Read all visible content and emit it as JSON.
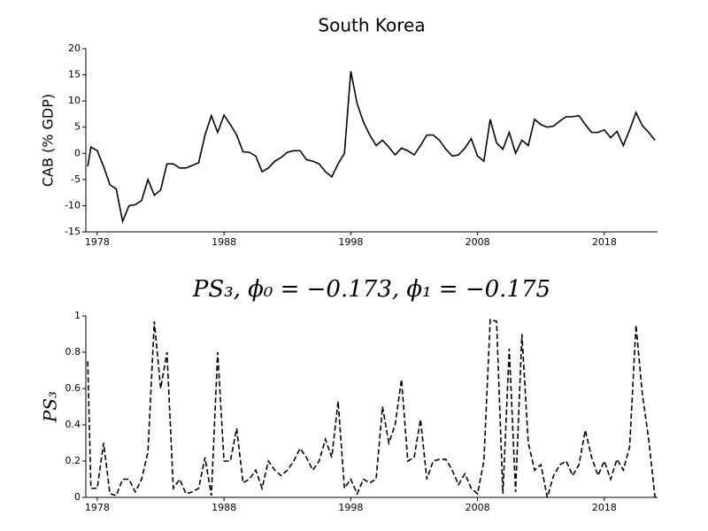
{
  "chart_data": [
    {
      "type": "line",
      "title": "South Korea",
      "ylabel": "CAB (% GDP)",
      "color": "#000000",
      "linestyle": "solid",
      "xlim": [
        1977.1,
        2022.2
      ],
      "xticks": [
        1978,
        1988,
        1998,
        2008,
        2018
      ],
      "ylim": [
        -15,
        20
      ],
      "yticks": [
        -15,
        -10,
        -5,
        0,
        5,
        10,
        15,
        20
      ],
      "x": [
        1977.25,
        1977.5,
        1978,
        1978.5,
        1979,
        1979.5,
        1980,
        1980.5,
        1981,
        1981.5,
        1982,
        1982.5,
        1983,
        1983.5,
        1984,
        1984.5,
        1985,
        1985.5,
        1986,
        1986.5,
        1987,
        1987.5,
        1988,
        1988.5,
        1989,
        1989.5,
        1990,
        1990.5,
        1991,
        1991.5,
        1992,
        1992.5,
        1993,
        1993.5,
        1994,
        1994.5,
        1995,
        1995.5,
        1996,
        1996.5,
        1997,
        1997.5,
        1998,
        1998.5,
        1999,
        1999.5,
        2000,
        2000.5,
        2001,
        2001.5,
        2002,
        2002.5,
        2003,
        2003.5,
        2004,
        2004.5,
        2005,
        2005.5,
        2006,
        2006.5,
        2007,
        2007.5,
        2008,
        2008.5,
        2009,
        2009.5,
        2010,
        2010.5,
        2011,
        2011.5,
        2012,
        2012.5,
        2013,
        2013.5,
        2014,
        2014.5,
        2015,
        2015.5,
        2016,
        2016.5,
        2017,
        2017.5,
        2018,
        2018.5,
        2019,
        2019.5,
        2020,
        2020.5,
        2021,
        2021.5,
        2022
      ],
      "values": [
        -2.5,
        1.2,
        0.5,
        -2.5,
        -6,
        -6.8,
        -13,
        -10,
        -9.8,
        -9,
        -5,
        -8,
        -7,
        -2,
        -2,
        -2.8,
        -2.8,
        -2.3,
        -1.8,
        3.5,
        7.2,
        4,
        7.3,
        5.5,
        3.5,
        0.3,
        0.2,
        -0.5,
        -3.5,
        -2.8,
        -1.5,
        -0.8,
        0.2,
        0.5,
        0.5,
        -1.2,
        -1.5,
        -2,
        -3.5,
        -4.5,
        -2,
        0,
        15.7,
        9.5,
        6,
        3.5,
        1.5,
        2.5,
        1.2,
        -0.3,
        1,
        0.5,
        -0.3,
        1.5,
        3.5,
        3.5,
        2.5,
        0.8,
        -0.5,
        -0.3,
        1,
        2.8,
        -0.5,
        -1.5,
        6.5,
        2,
        0.8,
        4,
        0,
        2.5,
        1.5,
        6.5,
        5.5,
        5,
        5.2,
        6.2,
        7,
        7,
        7.2,
        5.5,
        4,
        4,
        4.5,
        3,
        4.2,
        1.5,
        4.5,
        7.8,
        5.3,
        4,
        2.5
      ]
    },
    {
      "type": "line",
      "title": "PS₃, ϕ₀ = −0.173, ϕ₁ = −0.175",
      "ylabel": "PS₃",
      "color": "#000000",
      "linestyle": "dashed",
      "xlim": [
        1977.1,
        2022.2
      ],
      "xticks": [
        1978,
        1988,
        1998,
        2008,
        2018
      ],
      "ylim": [
        0,
        1
      ],
      "yticks": [
        0,
        0.2,
        0.4,
        0.6,
        0.8,
        1
      ],
      "x": [
        1977.25,
        1977.5,
        1978,
        1978.5,
        1979,
        1979.5,
        1980,
        1980.5,
        1981,
        1981.5,
        1982,
        1982.5,
        1983,
        1983.5,
        1984,
        1984.5,
        1985,
        1985.5,
        1986,
        1986.5,
        1987,
        1987.5,
        1988,
        1988.5,
        1989,
        1989.5,
        1990,
        1990.5,
        1991,
        1991.5,
        1992,
        1992.5,
        1993,
        1993.5,
        1994,
        1994.5,
        1995,
        1995.5,
        1996,
        1996.5,
        1997,
        1997.5,
        1998,
        1998.5,
        1999,
        1999.5,
        2000,
        2000.5,
        2001,
        2001.5,
        2002,
        2002.5,
        2003,
        2003.5,
        2004,
        2004.5,
        2005,
        2005.5,
        2006,
        2006.5,
        2007,
        2007.5,
        2008,
        2008.5,
        2009,
        2009.5,
        2010,
        2010.5,
        2011,
        2011.5,
        2012,
        2012.5,
        2013,
        2013.5,
        2014,
        2014.5,
        2015,
        2015.5,
        2016,
        2016.5,
        2017,
        2017.5,
        2018,
        2018.5,
        2019,
        2019.5,
        2020,
        2020.5,
        2021,
        2021.5,
        2022
      ],
      "values": [
        0.75,
        0.05,
        0.05,
        0.3,
        0.02,
        0.01,
        0.1,
        0.1,
        0.03,
        0.1,
        0.25,
        0.97,
        0.6,
        0.8,
        0.05,
        0.1,
        0.02,
        0.03,
        0.05,
        0.22,
        0.01,
        0.8,
        0.2,
        0.2,
        0.38,
        0.08,
        0.1,
        0.15,
        0.05,
        0.2,
        0.15,
        0.12,
        0.15,
        0.2,
        0.27,
        0.22,
        0.15,
        0.2,
        0.32,
        0.22,
        0.53,
        0.05,
        0.1,
        0.02,
        0.1,
        0.08,
        0.1,
        0.5,
        0.3,
        0.4,
        0.65,
        0.2,
        0.22,
        0.43,
        0.1,
        0.2,
        0.21,
        0.21,
        0.15,
        0.07,
        0.13,
        0.05,
        0.02,
        0.2,
        0.98,
        0.97,
        0.02,
        0.82,
        0.03,
        0.9,
        0.3,
        0.15,
        0.18,
        0,
        0.12,
        0.18,
        0.2,
        0.12,
        0.18,
        0.37,
        0.22,
        0.12,
        0.2,
        0.1,
        0.21,
        0.15,
        0.28,
        0.95,
        0.57,
        0.32,
        0
      ]
    }
  ]
}
